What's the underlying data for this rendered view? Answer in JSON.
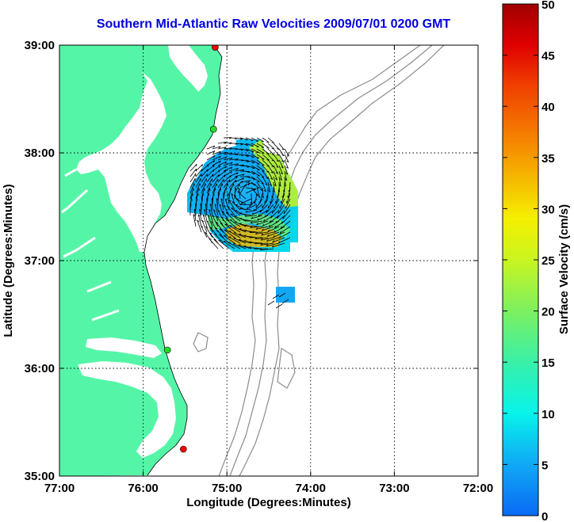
{
  "title": "Southern Mid-Atlantic Raw Velocities 2009/07/01 0200 GMT",
  "x_axis": {
    "label": "Longitude (Degrees:Minutes)",
    "ticks": [
      "77:00",
      "76:00",
      "75:00",
      "74:00",
      "73:00",
      "72:00"
    ]
  },
  "y_axis": {
    "label": "Latitude (Degrees:Minutes)",
    "ticks": [
      "39:00",
      "38:00",
      "37:00",
      "36:00",
      "35:00"
    ]
  },
  "colorbar": {
    "label": "Surface Velocity (cm/s)",
    "ticks": [
      "0",
      "5",
      "10",
      "15",
      "20",
      "25",
      "30",
      "35",
      "40",
      "45",
      "50"
    ],
    "colors": [
      "#0a6af5",
      "#10a8f5",
      "#07f3ea",
      "#39f0a8",
      "#7cf060",
      "#c9f520",
      "#f5f000",
      "#f5b800",
      "#f58000",
      "#f04000",
      "#e00000",
      "#a00000"
    ]
  },
  "colors": {
    "land": "#55f5a8",
    "bathymetry": "#8c8c8c",
    "grid": "#000000",
    "station_red": "#ff0000",
    "station_green": "#22dd22",
    "title": "#0000e0"
  },
  "stations": [
    {
      "lon": -75.14,
      "lat": 38.98,
      "color": "red"
    },
    {
      "lon": -75.16,
      "lat": 38.22,
      "color": "green"
    },
    {
      "lon": -75.71,
      "lat": 36.17,
      "color": "green"
    },
    {
      "lon": -75.52,
      "lat": 35.25,
      "color": "red"
    }
  ]
}
